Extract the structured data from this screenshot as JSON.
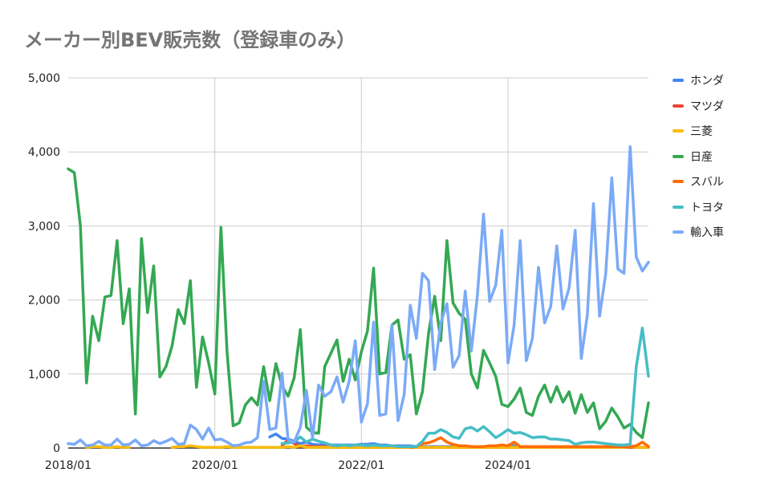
{
  "chart_data": {
    "type": "line",
    "title": "メーカー別BEV販売数（登録車のみ）",
    "xlabel": "",
    "ylabel": "",
    "ylim": [
      0,
      5000
    ],
    "yticks": [
      "0",
      "1,000",
      "2,000",
      "3,000",
      "4,000",
      "5,000"
    ],
    "xticks": [
      "2018/01",
      "2020/01",
      "2022/01",
      "2024/01"
    ],
    "grid": true,
    "legend": "right",
    "x": [
      "2018/01",
      "2018/02",
      "2018/03",
      "2018/04",
      "2018/05",
      "2018/06",
      "2018/07",
      "2018/08",
      "2018/09",
      "2018/10",
      "2018/11",
      "2018/12",
      "2019/01",
      "2019/02",
      "2019/03",
      "2019/04",
      "2019/05",
      "2019/06",
      "2019/07",
      "2019/08",
      "2019/09",
      "2019/10",
      "2019/11",
      "2019/12",
      "2020/01",
      "2020/02",
      "2020/03",
      "2020/04",
      "2020/05",
      "2020/06",
      "2020/07",
      "2020/08",
      "2020/09",
      "2020/10",
      "2020/11",
      "2020/12",
      "2021/01",
      "2021/02",
      "2021/03",
      "2021/04",
      "2021/05",
      "2021/06",
      "2021/07",
      "2021/08",
      "2021/09",
      "2021/10",
      "2021/11",
      "2021/12",
      "2022/01",
      "2022/02",
      "2022/03",
      "2022/04",
      "2022/05",
      "2022/06",
      "2022/07",
      "2022/08",
      "2022/09",
      "2022/10",
      "2022/11",
      "2022/12",
      "2023/01",
      "2023/02",
      "2023/03",
      "2023/04",
      "2023/05",
      "2023/06",
      "2023/07",
      "2023/08",
      "2023/09",
      "2023/10",
      "2023/11",
      "2023/12",
      "2024/01",
      "2024/02",
      "2024/03",
      "2024/04",
      "2024/05",
      "2024/06",
      "2024/07",
      "2024/08",
      "2024/09",
      "2024/10",
      "2024/11",
      "2024/12",
      "2025/01",
      "2025/02",
      "2025/03",
      "2025/04",
      "2025/05",
      "2025/06",
      "2025/07",
      "2025/08",
      "2025/09",
      "2025/10",
      "2025/11",
      "2025/12"
    ],
    "series": [
      {
        "name": "ホンダ",
        "color": "#4285F4",
        "values": [
          null,
          null,
          null,
          null,
          null,
          null,
          null,
          null,
          null,
          null,
          null,
          null,
          null,
          null,
          null,
          null,
          null,
          null,
          null,
          null,
          null,
          null,
          null,
          null,
          null,
          null,
          null,
          null,
          null,
          null,
          null,
          null,
          null,
          150,
          190,
          130,
          120,
          90,
          60,
          80,
          50,
          40,
          50,
          40,
          40,
          40,
          40,
          40,
          50,
          50,
          60,
          40,
          40,
          30,
          30,
          30,
          30,
          20,
          20,
          20,
          20,
          20,
          20,
          20,
          20,
          20,
          20,
          20,
          20,
          20,
          20,
          20,
          30,
          30,
          20,
          20,
          20,
          20,
          20,
          20,
          20,
          20,
          20,
          20,
          10,
          10,
          10,
          10,
          10,
          10,
          10,
          10,
          10,
          10,
          10,
          10
        ]
      },
      {
        "name": "マツダ",
        "color": "#EA4335",
        "values": [
          null,
          null,
          null,
          null,
          null,
          null,
          null,
          null,
          null,
          null,
          null,
          null,
          null,
          null,
          null,
          null,
          null,
          null,
          null,
          null,
          null,
          null,
          null,
          null,
          null,
          null,
          null,
          null,
          null,
          null,
          null,
          null,
          null,
          null,
          null,
          30,
          110,
          60,
          20,
          30,
          20,
          20,
          20,
          20,
          10,
          10,
          10,
          10,
          10,
          10,
          10,
          10,
          10,
          10,
          10,
          10,
          10,
          10,
          10,
          10,
          10,
          10,
          10,
          10,
          10,
          10,
          10,
          10,
          10,
          10,
          10,
          10,
          10,
          10,
          10,
          10,
          10,
          10,
          10,
          10,
          10,
          10,
          10,
          10,
          10,
          10,
          10,
          10,
          10,
          10,
          10,
          10,
          10,
          10,
          10,
          10
        ]
      },
      {
        "name": "三菱",
        "color": "#FBBC04",
        "values": [
          null,
          null,
          null,
          10,
          20,
          20,
          10,
          10,
          20,
          10,
          10,
          null,
          null,
          null,
          null,
          null,
          null,
          10,
          20,
          20,
          30,
          20,
          10,
          10,
          10,
          10,
          20,
          10,
          10,
          10,
          10,
          10,
          10,
          10,
          10,
          10,
          20,
          10,
          30,
          10,
          10,
          10,
          10,
          10,
          10,
          10,
          10,
          10,
          10,
          10,
          10,
          10,
          10,
          10,
          10,
          10,
          10,
          10,
          10,
          10,
          10,
          10,
          10,
          10,
          10,
          10,
          10,
          10,
          10,
          10,
          10,
          10,
          10,
          10,
          10,
          10,
          10,
          10,
          10,
          10,
          10,
          10,
          10,
          10,
          10,
          10,
          10,
          10,
          10,
          10,
          10,
          10,
          20,
          10,
          10,
          10
        ]
      },
      {
        "name": "日産",
        "color": "#34A853",
        "values": [
          3770,
          3720,
          3000,
          880,
          1780,
          1450,
          2040,
          2060,
          2800,
          1680,
          2150,
          460,
          2830,
          1830,
          2460,
          960,
          1100,
          1380,
          1870,
          1680,
          2260,
          820,
          1500,
          1150,
          730,
          2980,
          1300,
          300,
          340,
          580,
          680,
          580,
          1100,
          640,
          1140,
          840,
          700,
          950,
          1600,
          280,
          210,
          200,
          1100,
          1280,
          1460,
          900,
          1200,
          920,
          1300,
          1580,
          2430,
          1000,
          1020,
          1660,
          1730,
          1200,
          1260,
          460,
          760,
          1550,
          2050,
          1450,
          2800,
          1960,
          1820,
          1740,
          1000,
          810,
          1320,
          1150,
          970,
          590,
          560,
          660,
          810,
          480,
          440,
          700,
          850,
          620,
          830,
          620,
          760,
          470,
          720,
          480,
          610,
          260,
          360,
          540,
          420,
          270,
          320,
          210,
          140,
          610
        ]
      },
      {
        "name": "スバル",
        "color": "#FF6D01",
        "values": [
          null,
          null,
          null,
          null,
          null,
          null,
          null,
          null,
          null,
          null,
          null,
          null,
          null,
          null,
          null,
          null,
          null,
          null,
          null,
          null,
          null,
          null,
          null,
          null,
          null,
          null,
          null,
          null,
          null,
          null,
          null,
          null,
          null,
          null,
          null,
          null,
          null,
          null,
          null,
          null,
          null,
          null,
          null,
          null,
          null,
          null,
          null,
          null,
          null,
          null,
          null,
          null,
          null,
          null,
          null,
          null,
          10,
          20,
          60,
          70,
          100,
          140,
          80,
          50,
          30,
          30,
          20,
          20,
          20,
          30,
          30,
          40,
          30,
          80,
          20,
          20,
          20,
          20,
          20,
          20,
          20,
          20,
          20,
          20,
          20,
          20,
          20,
          20,
          20,
          20,
          20,
          20,
          20,
          30,
          80,
          20
        ]
      },
      {
        "name": "トヨタ",
        "color": "#46BDC6",
        "values": [
          null,
          null,
          null,
          null,
          null,
          null,
          null,
          null,
          null,
          null,
          null,
          null,
          null,
          null,
          null,
          null,
          null,
          null,
          null,
          null,
          null,
          null,
          null,
          null,
          null,
          null,
          null,
          null,
          null,
          null,
          null,
          null,
          null,
          null,
          null,
          60,
          70,
          80,
          150,
          80,
          120,
          90,
          70,
          40,
          30,
          40,
          30,
          40,
          40,
          30,
          40,
          30,
          30,
          30,
          20,
          20,
          20,
          20,
          90,
          200,
          200,
          250,
          210,
          150,
          130,
          260,
          280,
          230,
          290,
          220,
          140,
          190,
          250,
          200,
          210,
          180,
          140,
          150,
          150,
          120,
          120,
          110,
          100,
          50,
          70,
          80,
          80,
          70,
          60,
          50,
          40,
          40,
          50,
          1100,
          1620,
          970
        ]
      },
      {
        "name": "輸入車",
        "color": "#7BAAF7",
        "values": [
          60,
          50,
          110,
          30,
          40,
          90,
          40,
          40,
          120,
          40,
          50,
          110,
          30,
          40,
          100,
          60,
          90,
          130,
          50,
          60,
          310,
          250,
          120,
          270,
          110,
          120,
          80,
          30,
          40,
          70,
          80,
          140,
          900,
          250,
          270,
          1010,
          110,
          80,
          280,
          780,
          140,
          850,
          700,
          760,
          960,
          620,
          900,
          1450,
          350,
          600,
          1700,
          440,
          460,
          1660,
          370,
          720,
          1930,
          1480,
          2360,
          2260,
          1060,
          1690,
          1950,
          1090,
          1250,
          2120,
          1310,
          2070,
          3160,
          1980,
          2200,
          2940,
          1150,
          1660,
          2800,
          1180,
          1480,
          2440,
          1690,
          1910,
          2730,
          1880,
          2160,
          2940,
          1210,
          1800,
          3300,
          1780,
          2350,
          3650,
          2420,
          2360,
          4070,
          2580,
          2390,
          2510
        ]
      }
    ]
  }
}
